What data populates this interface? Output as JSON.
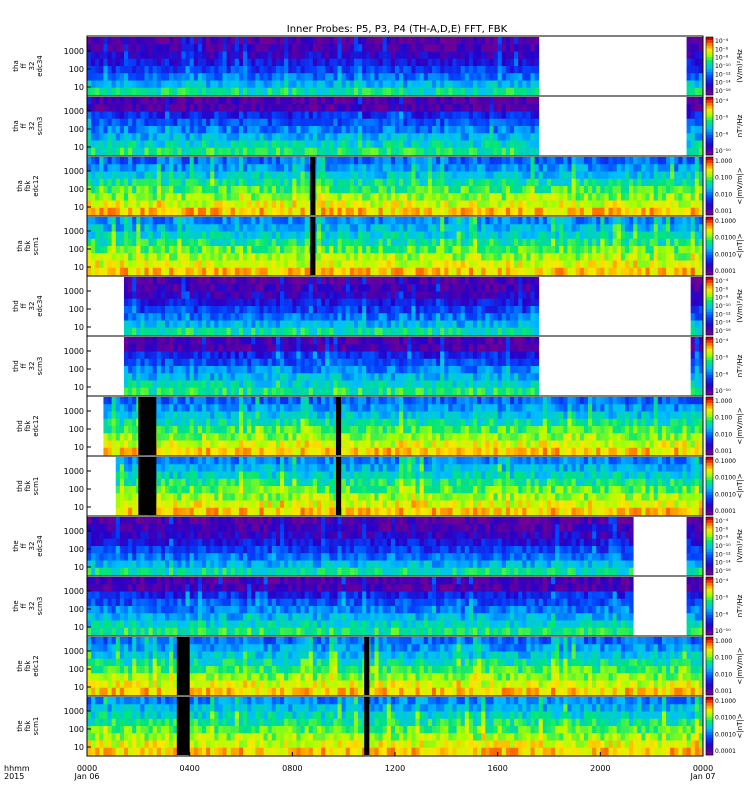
{
  "title": "Inner Probes: P5, P3, P4 (TH-A,D,E) FFT, FBK",
  "time_axis": {
    "header": [
      "hhmm",
      "2015"
    ],
    "ticks": [
      {
        "hour": 0,
        "label": "0000",
        "sub": "Jan 06"
      },
      {
        "hour": 4,
        "label": "0400",
        "sub": ""
      },
      {
        "hour": 8,
        "label": "0800",
        "sub": ""
      },
      {
        "hour": 12,
        "label": "1200",
        "sub": ""
      },
      {
        "hour": 16,
        "label": "1600",
        "sub": ""
      },
      {
        "hour": 20,
        "label": "2000",
        "sub": ""
      },
      {
        "hour": 24,
        "label": "0000",
        "sub": "Jan 07"
      }
    ]
  },
  "freq_ticks": [
    "1000",
    "100",
    "10"
  ],
  "colorbar_units": {
    "fft_e": "(V/m)²/Hz",
    "fft_b": "nT²/Hz",
    "fbk_e": "<|mV/m|>",
    "fbk_b": "<|nT|>"
  },
  "colorbar_ticks": {
    "fft_e": [
      "10⁻⁴",
      "10⁻⁶",
      "10⁻⁸",
      "10⁻¹⁰",
      "10⁻¹²",
      "10⁻¹⁴",
      "10⁻¹⁶"
    ],
    "fft_b": [
      "10⁻⁴",
      "10⁻⁶",
      "10⁻⁸",
      "10⁻¹⁰"
    ],
    "fbk_e": [
      "1.000",
      "0.100",
      "0.010",
      "0.001"
    ],
    "fbk_b": [
      "0.1000",
      "0.0100",
      "0.0010",
      "0.0001"
    ]
  },
  "chart_data": [
    {
      "type": "heatmap",
      "probe": "tha",
      "label": [
        "tha",
        "ff",
        "32",
        "edc34"
      ],
      "kind": "fft_e",
      "coverage": [
        [
          0,
          17.6
        ],
        [
          23.4,
          24
        ]
      ],
      "gaps": []
    },
    {
      "type": "heatmap",
      "probe": "tha",
      "label": [
        "tha",
        "ff",
        "32",
        "scm3"
      ],
      "kind": "fft_b",
      "coverage": [
        [
          0,
          17.6
        ],
        [
          23.4,
          24
        ]
      ],
      "gaps": []
    },
    {
      "type": "heatmap",
      "probe": "tha",
      "label": [
        "tha",
        "fbk",
        "edc12"
      ],
      "kind": "fbk_e",
      "coverage": [
        [
          0,
          24
        ]
      ],
      "gaps": [
        [
          8.7,
          8.9
        ]
      ]
    },
    {
      "type": "heatmap",
      "probe": "tha",
      "label": [
        "tha",
        "fbk",
        "scm1"
      ],
      "kind": "fbk_b",
      "coverage": [
        [
          0,
          24
        ]
      ],
      "gaps": [
        [
          8.7,
          8.9
        ]
      ]
    },
    {
      "type": "heatmap",
      "probe": "thd",
      "label": [
        "thd",
        "ff",
        "32",
        "edc34"
      ],
      "kind": "fft_e",
      "coverage": [
        [
          1.5,
          17.6
        ],
        [
          23.5,
          24
        ]
      ],
      "gaps": []
    },
    {
      "type": "heatmap",
      "probe": "thd",
      "label": [
        "thd",
        "ff",
        "32",
        "scm3"
      ],
      "kind": "fft_b",
      "coverage": [
        [
          1.5,
          17.6
        ],
        [
          23.5,
          24
        ]
      ],
      "gaps": []
    },
    {
      "type": "heatmap",
      "probe": "thd",
      "label": [
        "thd",
        "fbk",
        "edc12"
      ],
      "kind": "fbk_e",
      "coverage": [
        [
          0.6,
          24
        ]
      ],
      "gaps": [
        [
          2.0,
          2.7
        ],
        [
          9.7,
          9.9
        ]
      ]
    },
    {
      "type": "heatmap",
      "probe": "thd",
      "label": [
        "thd",
        "fbk",
        "scm1"
      ],
      "kind": "fbk_b",
      "coverage": [
        [
          1.1,
          24
        ]
      ],
      "gaps": [
        [
          2.0,
          2.7
        ],
        [
          9.7,
          9.9
        ]
      ]
    },
    {
      "type": "heatmap",
      "probe": "the",
      "label": [
        "the",
        "ff",
        "32",
        "edc34"
      ],
      "kind": "fft_e",
      "coverage": [
        [
          0,
          21.3
        ],
        [
          23.3,
          24
        ]
      ],
      "gaps": []
    },
    {
      "type": "heatmap",
      "probe": "the",
      "label": [
        "the",
        "ff",
        "32",
        "scm3"
      ],
      "kind": "fft_b",
      "coverage": [
        [
          0,
          21.3
        ],
        [
          23.3,
          24
        ]
      ],
      "gaps": []
    },
    {
      "type": "heatmap",
      "probe": "the",
      "label": [
        "the",
        "fbk",
        "edc12"
      ],
      "kind": "fbk_e",
      "coverage": [
        [
          0,
          24
        ]
      ],
      "gaps": [
        [
          3.5,
          4.0
        ],
        [
          10.8,
          11.0
        ]
      ]
    },
    {
      "type": "heatmap",
      "probe": "the",
      "label": [
        "the",
        "fbk",
        "scm1"
      ],
      "kind": "fbk_b",
      "coverage": [
        [
          0,
          24
        ]
      ],
      "gaps": [
        [
          3.5,
          4.0
        ],
        [
          10.8,
          11.0
        ]
      ]
    }
  ]
}
